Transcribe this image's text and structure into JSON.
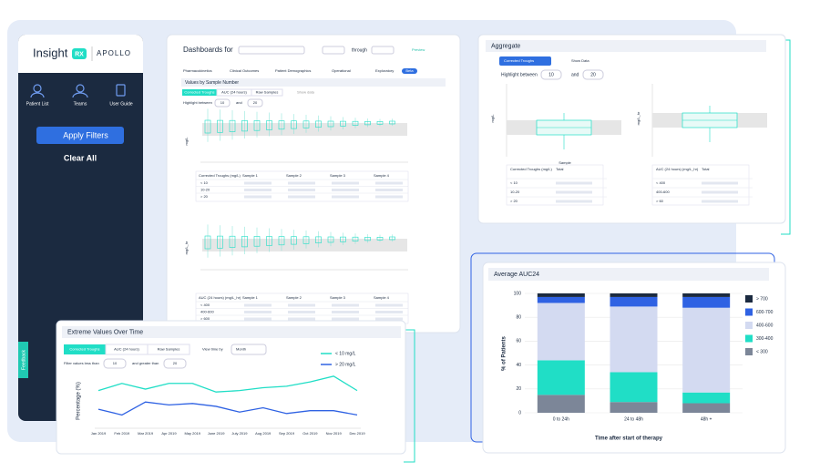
{
  "sidebar": {
    "logo": "Insight",
    "logo_badge": "RX",
    "brand": "APOLLO",
    "nav": [
      "Patient List",
      "Teams",
      "User Guide"
    ],
    "apply": "Apply Filters",
    "clear": "Clear All",
    "feedback": "Feedback"
  },
  "dashboard": {
    "title": "Dashboards for",
    "through": "through",
    "preview": "Preview",
    "tabs": [
      "Pharmacokinetics",
      "Clinical Outcomes",
      "Patient Demographics",
      "Operational",
      "Exploratory",
      "Beta"
    ],
    "section": "Values by Sample Number",
    "subtabs": [
      "Corrected Troughs",
      "AUC (24 hours)",
      "Raw Samples"
    ],
    "show_data": "Show data",
    "highlight": "Highlight between",
    "low": "10",
    "and": "and",
    "high": "20",
    "ylabel1": "mg/L",
    "ylabel2": "mg/L_hr",
    "table1": {
      "headers": [
        "Corrected Troughs (mg/L)",
        "Sample 1",
        "Sample 2",
        "Sample 3",
        "Sample 4"
      ],
      "rows": [
        "< 10",
        "10-20",
        "> 20"
      ]
    },
    "table2": {
      "headers": [
        "AUC (24 hours) (mg/L_hr)",
        "Sample 1",
        "Sample 2",
        "Sample 3",
        "Sample 4"
      ],
      "rows": [
        "< 400",
        "400-600",
        "> 600"
      ]
    }
  },
  "aggregate": {
    "title": "Aggregate",
    "dropdown": "Corrected Troughs",
    "show_data": "Show Data",
    "highlight": "Highlight between",
    "low": "10",
    "and": "and",
    "high": "20",
    "ylabel1": "mg/L",
    "ylabel2": "mg/L_hr",
    "xlabel": "Sample",
    "table1": {
      "headers": [
        "Corrected Troughs (mg/L)",
        "Total"
      ],
      "rows": [
        "< 10",
        "10-20",
        "> 20"
      ]
    },
    "table2": {
      "headers": [
        "AUC (24 hours) (mg/L_hr)",
        "Total"
      ],
      "rows": [
        "< 400",
        "400-600",
        "> 60"
      ]
    }
  },
  "chart_data": [
    {
      "type": "stacked_bar",
      "title": "Average AUC24",
      "ylabel": "% of Patients",
      "xlabel": "Time after start of therapy",
      "categories": [
        "0 to 24h",
        "24 to 48h",
        "48h +"
      ],
      "series": [
        {
          "name": "< 300",
          "color": "#7c8698",
          "values": [
            15,
            9,
            8
          ]
        },
        {
          "name": "300-400",
          "color": "#20dec6",
          "values": [
            29,
            25,
            9
          ]
        },
        {
          "name": "400-600",
          "color": "#d3daf1",
          "values": [
            48,
            55,
            71
          ]
        },
        {
          "name": "600-700",
          "color": "#2f62e3",
          "values": [
            5,
            8,
            9
          ]
        },
        {
          "name": "> 700",
          "color": "#1b2a40",
          "values": [
            3,
            3,
            3
          ]
        }
      ],
      "ylim": [
        0,
        100
      ],
      "yticks": [
        0,
        20,
        40,
        60,
        80,
        100
      ],
      "grid": true,
      "legend": "right"
    },
    {
      "type": "line",
      "title": "Extreme Values Over Time",
      "tabs": [
        "Corrected Troughs",
        "AUC (24 hours)",
        "Raw Samples"
      ],
      "view_by": "View time by",
      "view_value": "Month",
      "filter_less": "Filter values less than",
      "less_value": "10",
      "filter_greater": "and greater than",
      "greater_value": "20",
      "ylabel": "Percentage (%)",
      "categories": [
        "Jan 2019",
        "Feb 2019",
        "Mar 2019",
        "Apr 2019",
        "May 2019",
        "June 2019",
        "July 2019",
        "Aug 2019",
        "Sep 2019",
        "Oct 2019",
        "Nov 2019",
        "Dec 2019"
      ],
      "series": [
        {
          "name": "< 10 mg/L",
          "color": "#20dec6",
          "values": [
            25,
            30,
            26,
            30,
            30,
            24,
            25,
            27,
            28,
            31,
            35,
            25
          ]
        },
        {
          "name": "> 20 mg/L",
          "color": "#2f62e3",
          "values": [
            12,
            8,
            17,
            15,
            16,
            14,
            10,
            13,
            9,
            11,
            11,
            8
          ]
        }
      ],
      "ylim": [
        0,
        40
      ],
      "legend": "upper right"
    }
  ]
}
